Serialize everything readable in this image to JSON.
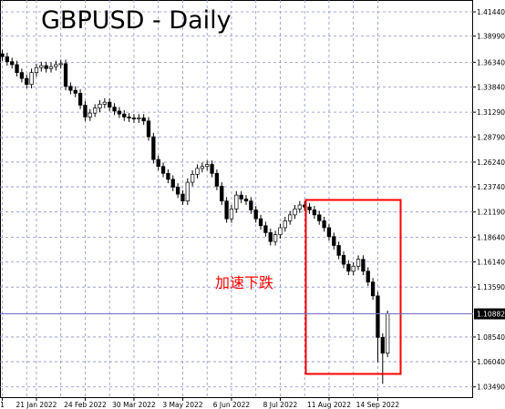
{
  "chart_data": {
    "type": "candlestick",
    "title": "GBPUSD - Daily",
    "annotation": "加速下跌",
    "categories": [
      "1",
      null,
      null,
      null,
      null,
      null,
      null,
      "21 Jan 2022",
      null,
      null,
      null,
      null,
      null,
      null,
      null,
      null,
      null,
      "24 Feb 2022",
      null,
      null,
      null,
      null,
      null,
      null,
      null,
      null,
      null,
      "30 Mar 2022",
      null,
      null,
      null,
      null,
      null,
      null,
      null,
      null,
      null,
      "3 May 2022",
      null,
      null,
      null,
      null,
      null,
      null,
      null,
      null,
      null,
      "6 Jun 2022",
      null,
      null,
      null,
      null,
      null,
      null,
      null,
      null,
      null,
      "8 Jul 2022",
      null,
      null,
      null,
      null,
      null,
      null,
      null,
      null,
      null,
      "11 Aug 2022",
      null,
      null,
      null,
      null,
      null,
      null,
      null,
      null,
      null,
      "14 Sep 2022",
      null,
      null
    ],
    "open": [
      1.372,
      1.369,
      1.364,
      1.361,
      1.353,
      1.347,
      1.341,
      1.353,
      1.358,
      1.36,
      1.357,
      1.359,
      1.361,
      1.362,
      1.339,
      1.335,
      1.332,
      1.32,
      1.308,
      1.312,
      1.317,
      1.321,
      1.323,
      1.318,
      1.314,
      1.311,
      1.308,
      1.307,
      1.306,
      1.307,
      1.304,
      1.288,
      1.265,
      1.258,
      1.251,
      1.245,
      1.237,
      1.23,
      1.223,
      1.242,
      1.25,
      1.256,
      1.258,
      1.26,
      1.251,
      1.238,
      1.223,
      1.205,
      1.215,
      1.229,
      1.225,
      1.223,
      1.214,
      1.205,
      1.198,
      1.191,
      1.182,
      1.189,
      1.196,
      1.203,
      1.209,
      1.215,
      1.219,
      1.217,
      1.214,
      1.209,
      1.203,
      1.196,
      1.187,
      1.178,
      1.168,
      1.159,
      1.152,
      1.157,
      1.164,
      1.152,
      1.141,
      1.127,
      1.085,
      1.069
    ],
    "high": [
      1.376,
      1.373,
      1.368,
      1.365,
      1.357,
      1.351,
      1.357,
      1.362,
      1.364,
      1.364,
      1.363,
      1.365,
      1.366,
      1.366,
      1.343,
      1.339,
      1.336,
      1.324,
      1.316,
      1.321,
      1.325,
      1.327,
      1.327,
      1.322,
      1.318,
      1.315,
      1.312,
      1.311,
      1.311,
      1.311,
      1.308,
      1.292,
      1.269,
      1.262,
      1.255,
      1.249,
      1.241,
      1.234,
      1.246,
      1.254,
      1.26,
      1.262,
      1.264,
      1.264,
      1.255,
      1.242,
      1.227,
      1.219,
      1.233,
      1.233,
      1.229,
      1.227,
      1.218,
      1.209,
      1.202,
      1.195,
      1.193,
      1.2,
      1.207,
      1.213,
      1.219,
      1.223,
      1.223,
      1.221,
      1.218,
      1.213,
      1.207,
      1.2,
      1.191,
      1.182,
      1.172,
      1.163,
      1.161,
      1.168,
      1.168,
      1.156,
      1.145,
      1.131,
      1.089,
      1.112
    ],
    "low": [
      1.365,
      1.36,
      1.357,
      1.349,
      1.343,
      1.337,
      1.337,
      1.349,
      1.354,
      1.353,
      1.353,
      1.355,
      1.357,
      1.335,
      1.331,
      1.328,
      1.316,
      1.304,
      1.304,
      1.308,
      1.313,
      1.317,
      1.314,
      1.31,
      1.307,
      1.304,
      1.303,
      1.302,
      1.302,
      1.3,
      1.284,
      1.261,
      1.254,
      1.247,
      1.241,
      1.233,
      1.226,
      1.219,
      1.219,
      1.238,
      1.246,
      1.252,
      1.254,
      1.247,
      1.234,
      1.219,
      1.201,
      1.201,
      1.211,
      1.221,
      1.219,
      1.21,
      1.201,
      1.194,
      1.187,
      1.178,
      1.178,
      1.185,
      1.192,
      1.199,
      1.205,
      1.211,
      1.213,
      1.21,
      1.205,
      1.199,
      1.192,
      1.183,
      1.174,
      1.164,
      1.155,
      1.148,
      1.148,
      1.153,
      1.148,
      1.137,
      1.123,
      1.06,
      1.038,
      1.065
    ],
    "close": [
      1.369,
      1.364,
      1.361,
      1.353,
      1.347,
      1.341,
      1.353,
      1.358,
      1.36,
      1.357,
      1.359,
      1.361,
      1.362,
      1.339,
      1.335,
      1.332,
      1.32,
      1.308,
      1.312,
      1.317,
      1.321,
      1.323,
      1.318,
      1.314,
      1.311,
      1.308,
      1.307,
      1.306,
      1.307,
      1.304,
      1.288,
      1.265,
      1.258,
      1.251,
      1.245,
      1.237,
      1.23,
      1.223,
      1.242,
      1.25,
      1.256,
      1.258,
      1.26,
      1.251,
      1.238,
      1.223,
      1.205,
      1.215,
      1.229,
      1.225,
      1.223,
      1.214,
      1.205,
      1.198,
      1.191,
      1.182,
      1.189,
      1.196,
      1.203,
      1.209,
      1.215,
      1.219,
      1.217,
      1.214,
      1.209,
      1.203,
      1.196,
      1.187,
      1.178,
      1.168,
      1.159,
      1.152,
      1.157,
      1.164,
      1.152,
      1.141,
      1.127,
      1.085,
      1.069,
      1.10882
    ],
    "last_price": 1.10882,
    "ylim": [
      1.0236,
      1.4264
    ],
    "yticks": [
      {
        "value": 1.4144,
        "label": "1.41440"
      },
      {
        "value": 1.3899,
        "label": "1.38990"
      },
      {
        "value": 1.3634,
        "label": "1.36340"
      },
      {
        "value": 1.3384,
        "label": "1.33840"
      },
      {
        "value": 1.3129,
        "label": "1.31290"
      },
      {
        "value": 1.2879,
        "label": "1.28790"
      },
      {
        "value": 1.2624,
        "label": "1.26240"
      },
      {
        "value": 1.2374,
        "label": "1.23740"
      },
      {
        "value": 1.2119,
        "label": "1.21190"
      },
      {
        "value": 1.1864,
        "label": "1.18640"
      },
      {
        "value": 1.1614,
        "label": "1.16140"
      },
      {
        "value": 1.1359,
        "label": "1.13590"
      },
      {
        "value": 1.0854,
        "label": "1.08540"
      },
      {
        "value": 1.0604,
        "label": "1.06040"
      },
      {
        "value": 1.0349,
        "label": "1.03490"
      }
    ],
    "grid": true,
    "up_color": "#ffffff",
    "down_color": "#000000",
    "annotation_color": "#ff0000",
    "price_line_color": "#6a70c0"
  }
}
